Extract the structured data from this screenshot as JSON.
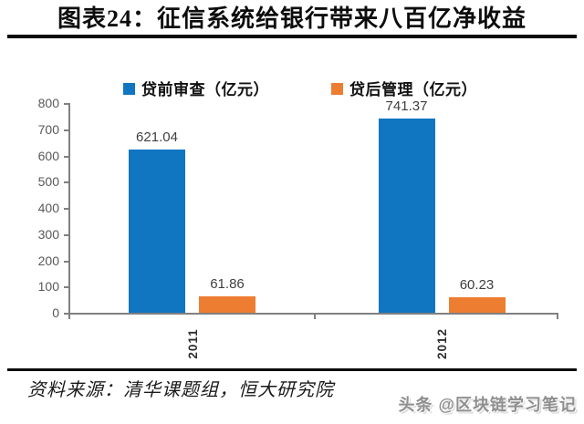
{
  "title": "图表24：征信系统给银行带来八百亿净收益",
  "legend": [
    {
      "label": "贷前审查（亿元）",
      "color": "#1076C2"
    },
    {
      "label": "贷后管理（亿元）",
      "color": "#ED7D31"
    }
  ],
  "chart_data": {
    "type": "bar",
    "title": "图表24：征信系统给银行带来八百亿净收益",
    "categories": [
      "2011",
      "2012"
    ],
    "series": [
      {
        "name": "贷前审查（亿元）",
        "color": "#1076C2",
        "values": [
          621.04,
          741.37
        ]
      },
      {
        "name": "贷后管理（亿元）",
        "color": "#ED7D31",
        "values": [
          61.86,
          60.23
        ]
      }
    ],
    "xlabel": "",
    "ylabel": "",
    "ylim": [
      0,
      800
    ],
    "yticks": [
      0,
      100,
      200,
      300,
      400,
      500,
      600,
      700,
      800
    ],
    "grid": false,
    "legend_position": "top",
    "data_labels": true
  },
  "footer": {
    "source": "资料来源：清华课题组，恒大研究院"
  },
  "watermark": "头条 @区块链学习笔记",
  "colors": {
    "axis": "#808080",
    "tick_label": "#595959",
    "data_label": "#3f3f3f",
    "rule": "#0a0a0a"
  }
}
